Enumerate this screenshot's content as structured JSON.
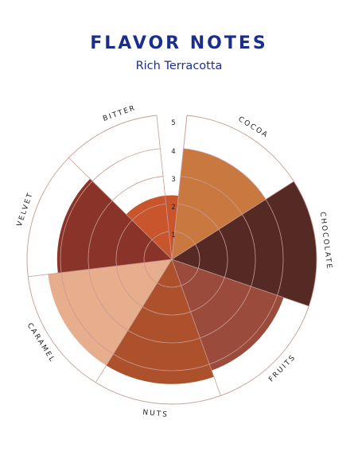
{
  "chart_data": {
    "type": "polar-area",
    "title": "FLAVOR NOTES",
    "subtitle": "Rich Terracotta",
    "categories": [
      "COCOA",
      "CHOCOLATE",
      "FRUITS",
      "NUTS",
      "CARAMEL",
      "VELVET",
      "BITTER"
    ],
    "values": [
      4.0,
      5.0,
      4.2,
      4.4,
      4.4,
      4.1,
      2.3
    ],
    "colors": [
      "#c97840",
      "#562a24",
      "#9b4b3b",
      "#ac512c",
      "#e6ae8c",
      "#8a3429",
      "#c9552d"
    ],
    "radial_ticks": [
      "1",
      "2",
      "3",
      "4",
      "5"
    ],
    "rmax": 5,
    "grid_color": "#c89a94"
  }
}
